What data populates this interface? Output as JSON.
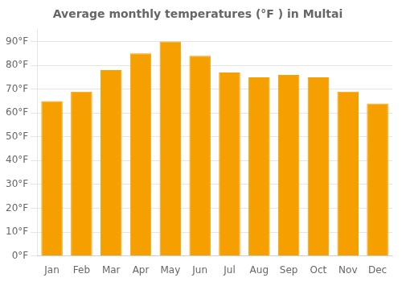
{
  "chart_data": {
    "type": "bar",
    "title": "Average monthly temperatures (°F ) in Multai",
    "categories": [
      "Jan",
      "Feb",
      "Mar",
      "Apr",
      "May",
      "Jun",
      "Jul",
      "Aug",
      "Sep",
      "Oct",
      "Nov",
      "Dec"
    ],
    "values": [
      65,
      69,
      78,
      85,
      90,
      84,
      77,
      75,
      76,
      75,
      69,
      64
    ],
    "color": "#F5A000",
    "ylim": [
      0,
      95
    ],
    "yticks": [
      {
        "value": 0,
        "label": "0°F"
      },
      {
        "value": 10,
        "label": "10°F"
      },
      {
        "value": 20,
        "label": "20°F"
      },
      {
        "value": 30,
        "label": "30°F"
      },
      {
        "value": 40,
        "label": "40°F"
      },
      {
        "value": 50,
        "label": "50°F"
      },
      {
        "value": 60,
        "label": "60°F"
      },
      {
        "value": 70,
        "label": "70°F"
      },
      {
        "value": 80,
        "label": "80°F"
      },
      {
        "value": 90,
        "label": "90°F"
      }
    ],
    "grid": true
  }
}
